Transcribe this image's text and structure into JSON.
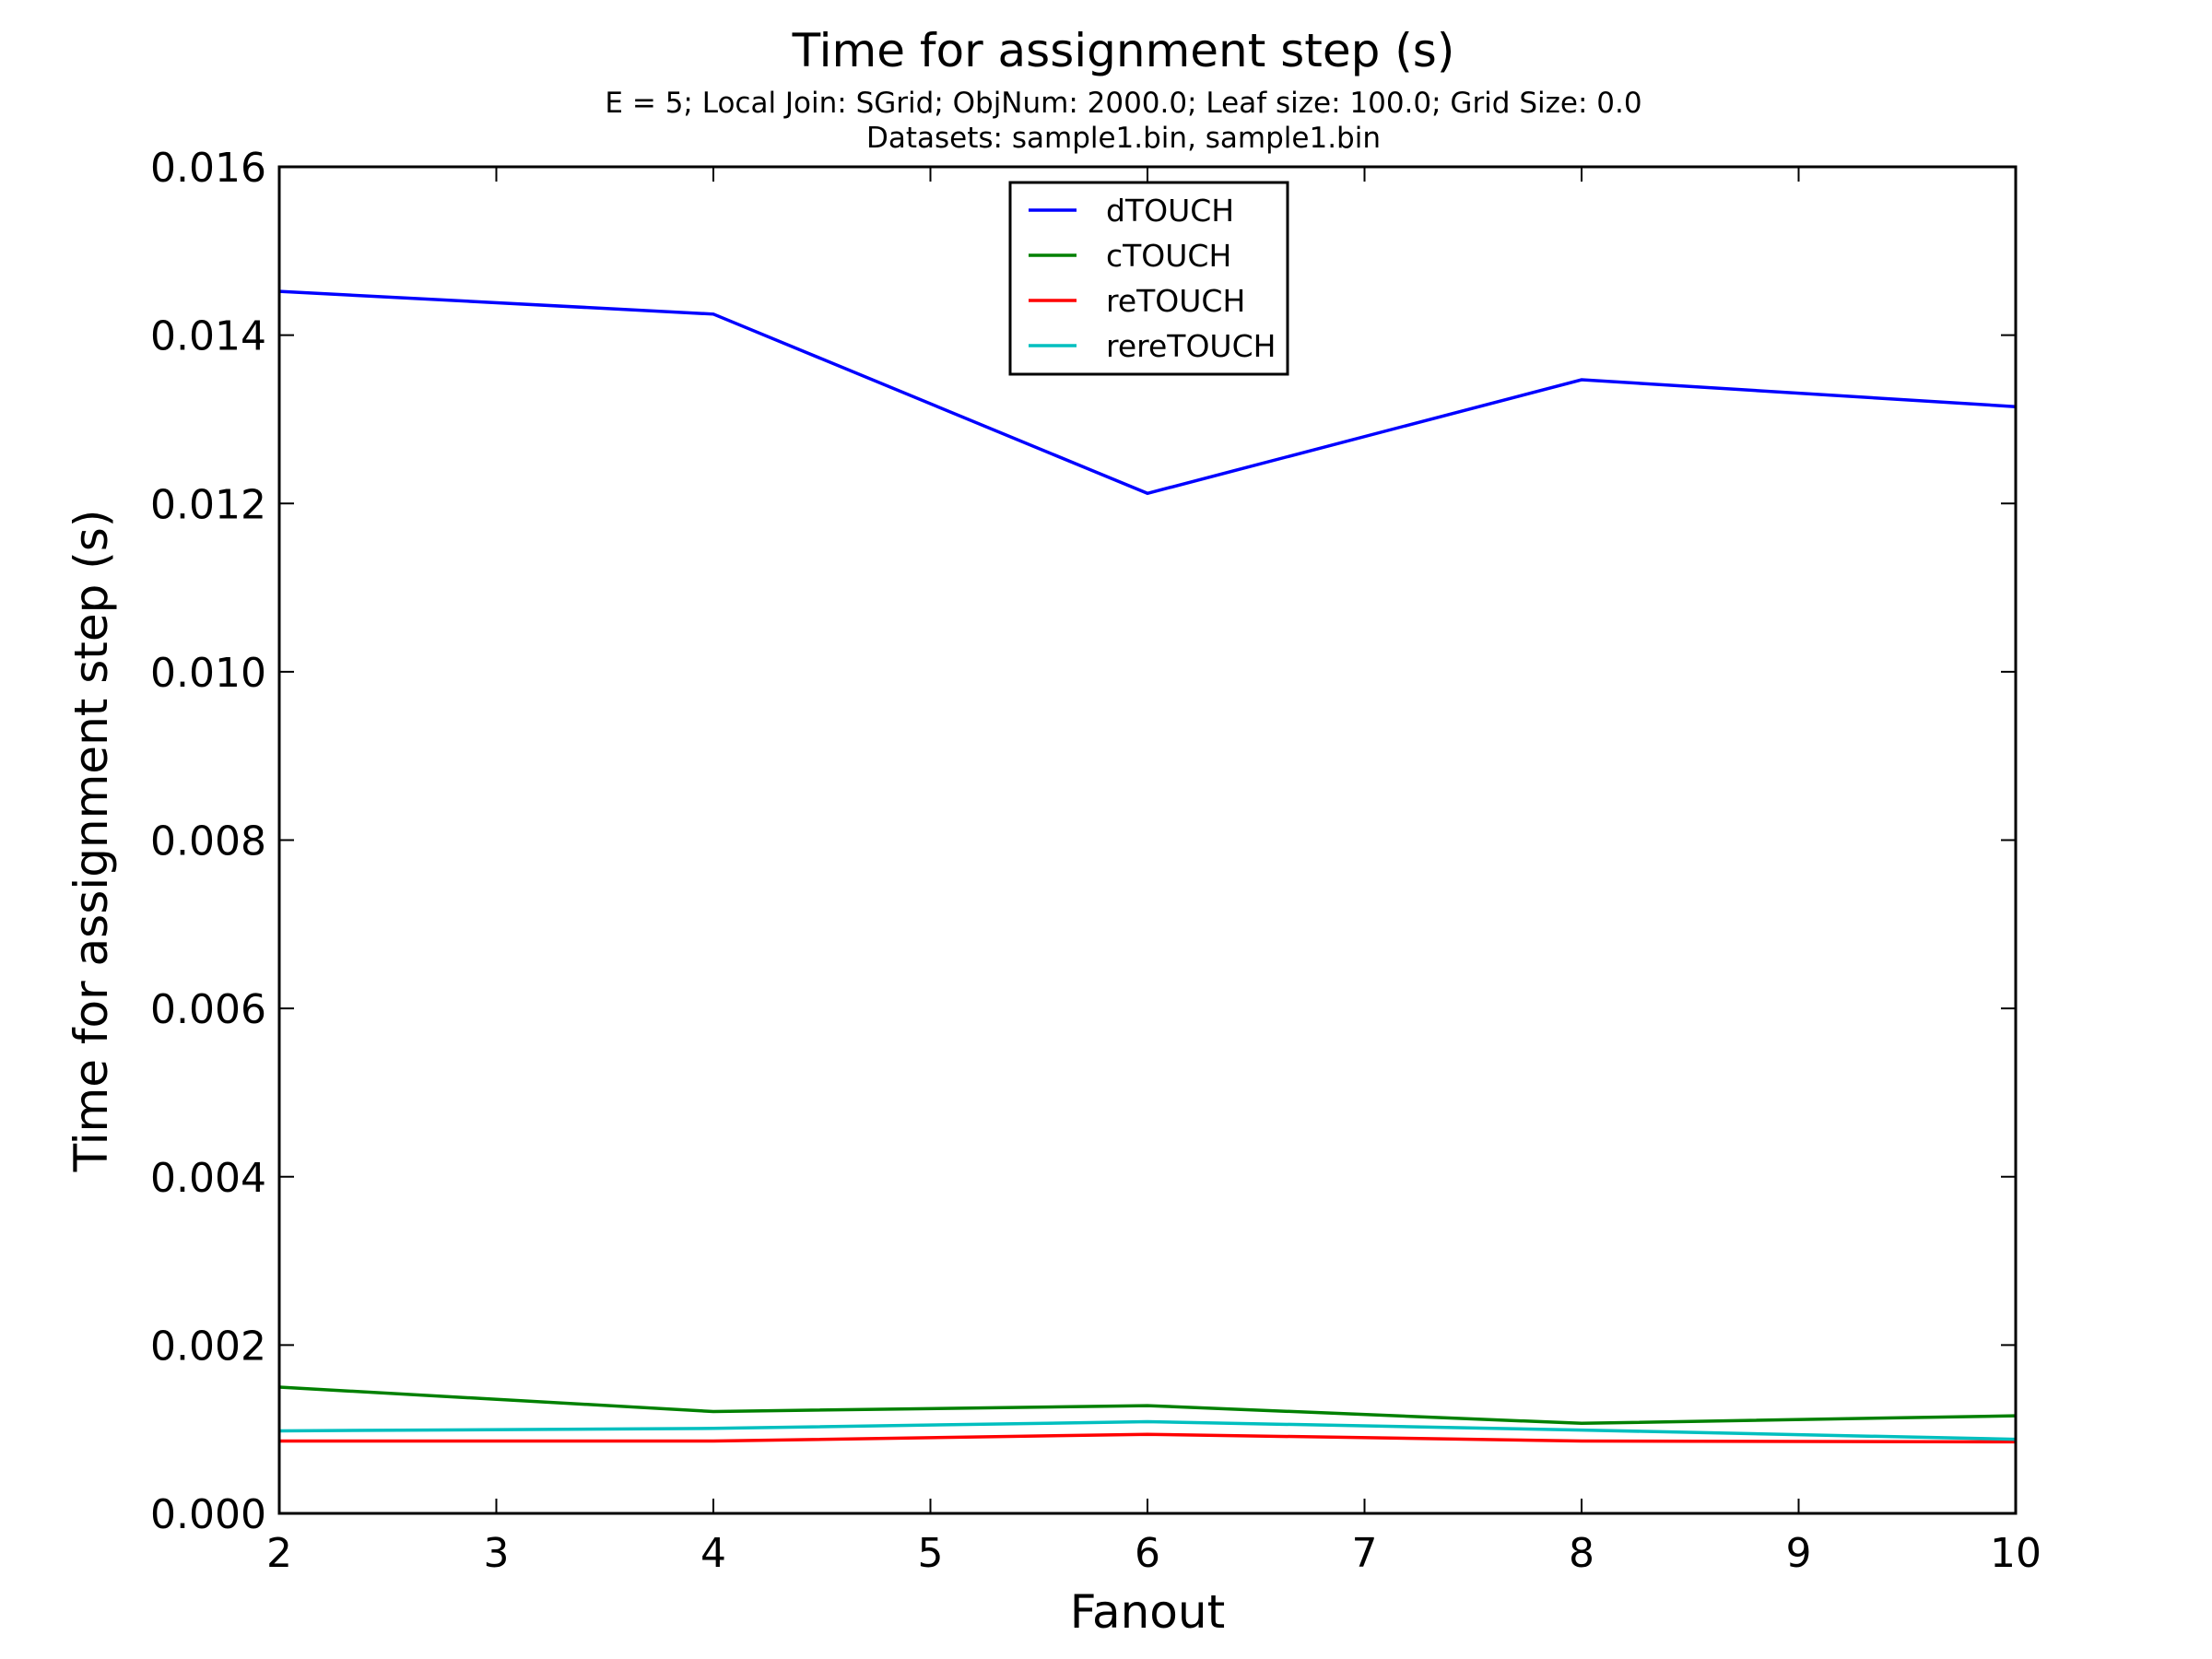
{
  "chart_data": {
    "type": "line",
    "title": "Time for assignment step (s)",
    "subtitle_lines": [
      "E = 5; Local Join: SGrid; ObjNum: 2000.0; Leaf size: 100.0; Grid Size: 0.0",
      "Datasets: sample1.bin, sample1.bin"
    ],
    "xlabel": "Fanout",
    "ylabel": "Time for assignment step (s)",
    "xlim": [
      2,
      10
    ],
    "ylim": [
      0.0,
      0.016
    ],
    "xticks": [
      "2",
      "3",
      "4",
      "5",
      "6",
      "7",
      "8",
      "9",
      "10"
    ],
    "yticks": [
      "0.000",
      "0.002",
      "0.004",
      "0.006",
      "0.008",
      "0.010",
      "0.012",
      "0.014",
      "0.016"
    ],
    "grid": false,
    "legend_position": "upper-center",
    "x": [
      2,
      4,
      6,
      8,
      10
    ],
    "series": [
      {
        "name": "dTOUCH",
        "color": "#0000ff",
        "values": [
          0.01452,
          0.01425,
          0.01212,
          0.01347,
          0.01315
        ]
      },
      {
        "name": "cTOUCH",
        "color": "#008000",
        "values": [
          0.0015,
          0.00121,
          0.00128,
          0.00107,
          0.00116
        ]
      },
      {
        "name": "reTOUCH",
        "color": "#ff0000",
        "values": [
          0.00086,
          0.00086,
          0.00094,
          0.00086,
          0.00085
        ]
      },
      {
        "name": "rereTOUCH",
        "color": "#00bfbf",
        "values": [
          0.00098,
          0.00101,
          0.00109,
          0.00099,
          0.00088
        ]
      }
    ]
  }
}
